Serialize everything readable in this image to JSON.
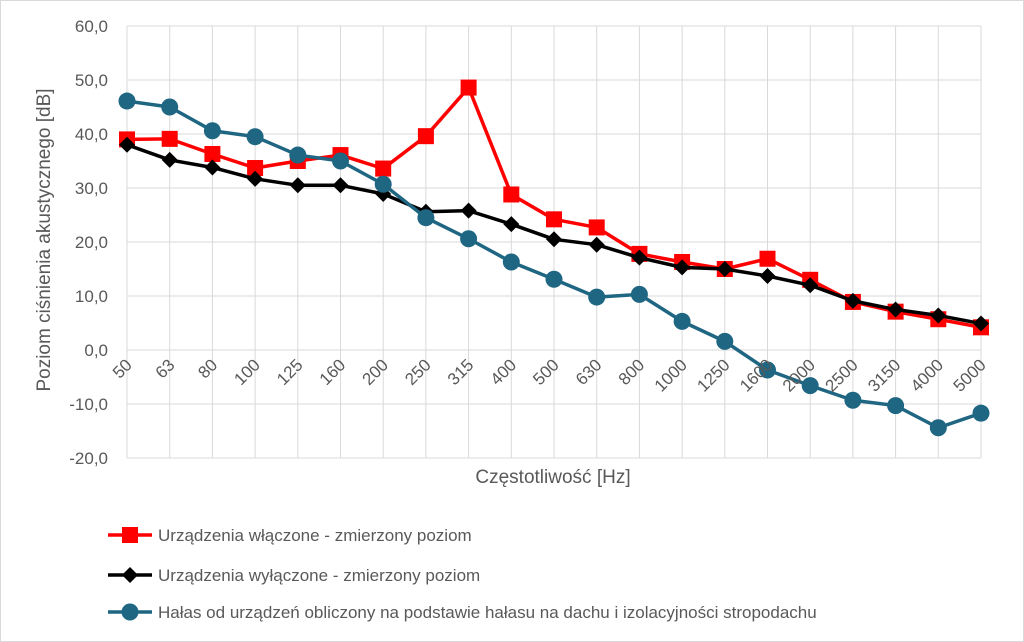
{
  "chart_data": {
    "type": "line",
    "title": "",
    "xlabel": "Częstotliwość [Hz]",
    "ylabel": "Poziom ciśnienia akustycznego [dB]",
    "ylim": [
      -20,
      60
    ],
    "yticks": [
      "60,0",
      "50,0",
      "40,0",
      "30,0",
      "20,0",
      "10,0",
      "0,0",
      "-10,0",
      "-20,0"
    ],
    "ytick_values": [
      60,
      50,
      40,
      30,
      20,
      10,
      0,
      -10,
      -20
    ],
    "grid": true,
    "legend_position": "bottom",
    "categories": [
      "50",
      "63",
      "80",
      "100",
      "125",
      "160",
      "200",
      "250",
      "315",
      "400",
      "500",
      "630",
      "800",
      "1000",
      "1250",
      "1600",
      "2000",
      "2500",
      "3150",
      "4000",
      "5000"
    ],
    "series": [
      {
        "name": "Urządzenia włączone - zmierzony poziom",
        "color": "#ff0000",
        "marker": "square",
        "values": [
          39.0,
          39.1,
          36.3,
          33.7,
          35.0,
          36.1,
          33.6,
          39.6,
          48.6,
          28.8,
          24.2,
          22.7,
          17.8,
          16.3,
          15.0,
          16.9,
          13.0,
          8.9,
          7.1,
          5.7,
          4.2
        ]
      },
      {
        "name": "Urządzenia wyłączone - zmierzony poziom",
        "color": "#000000",
        "marker": "diamond",
        "values": [
          38.0,
          35.2,
          33.8,
          31.7,
          30.5,
          30.5,
          28.9,
          25.6,
          25.8,
          23.3,
          20.5,
          19.5,
          17.1,
          15.3,
          15.0,
          13.7,
          12.0,
          9.1,
          7.5,
          6.4,
          4.9
        ]
      },
      {
        "name": "Hałas od urządzeń obliczony na podstawie hałasu na dachu i izolacyjności stropodachu",
        "color": "#1f6683",
        "marker": "circle",
        "values": [
          46.1,
          45.0,
          40.6,
          39.5,
          36.1,
          35.0,
          30.7,
          24.5,
          20.6,
          16.3,
          13.1,
          9.8,
          10.3,
          5.3,
          1.6,
          -3.7,
          -6.6,
          -9.3,
          -10.3,
          -14.4,
          -11.7
        ]
      }
    ]
  }
}
